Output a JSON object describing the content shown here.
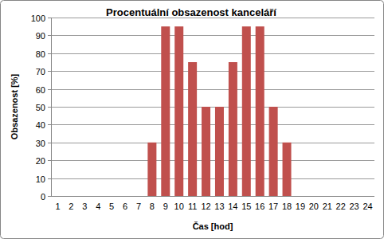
{
  "chart_data": {
    "type": "bar",
    "title": "Procentuální obsazenost kanceláří",
    "x_label": "Čas [hod]",
    "y_label": "Obsazenost [%]",
    "categories": [
      "1",
      "2",
      "3",
      "4",
      "5",
      "6",
      "7",
      "8",
      "9",
      "10",
      "11",
      "12",
      "13",
      "14",
      "15",
      "16",
      "17",
      "18",
      "19",
      "20",
      "21",
      "22",
      "23",
      "24"
    ],
    "values": [
      0,
      0,
      0,
      0,
      0,
      0,
      0,
      30,
      95,
      95,
      75,
      50,
      50,
      75,
      95,
      95,
      50,
      30,
      0,
      0,
      0,
      0,
      0,
      0
    ],
    "color": "#c0504d",
    "ylim": [
      0,
      100
    ],
    "yticks": [
      0,
      10,
      20,
      30,
      40,
      50,
      60,
      70,
      80,
      90,
      100
    ],
    "grid": true
  }
}
